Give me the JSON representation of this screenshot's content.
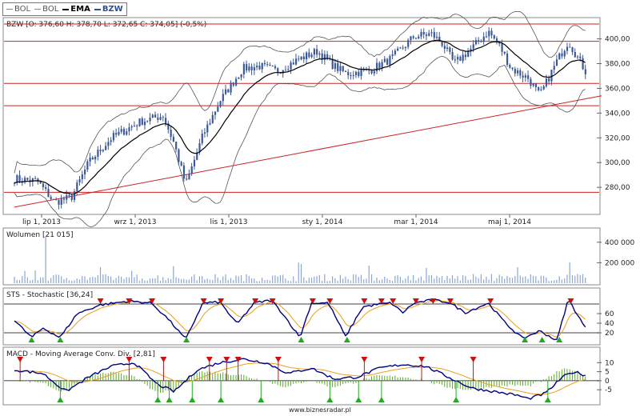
{
  "legend": [
    {
      "label": "BOL",
      "style": "thin"
    },
    {
      "label": "BOL",
      "style": "thin"
    },
    {
      "label": "EMA",
      "style": "bold"
    },
    {
      "label": "BZW",
      "style": "blue"
    }
  ],
  "footer": "www.biznesradar.pl",
  "colors": {
    "candle": "#3b5998",
    "support": "#cc2222",
    "volume": "#8aa6d8",
    "stoch_main": "#000080",
    "stoch_signal": "#e8a020",
    "macd_hist": "#5aaa2a",
    "marker_up": "#22aa22",
    "marker_down": "#cc1111"
  },
  "chart_data": [
    {
      "type": "candlestick",
      "title": "BZW [O: 376,60  H: 378,70  L: 372,65  C: 374,05] (-0,5%)",
      "x_tick_labels": [
        "lip 1, 2013",
        "wrz 1, 2013",
        "lis 1, 2013",
        "sty 1, 2014",
        "mar 1, 2014",
        "maj 1, 2014"
      ],
      "y_tick_labels": [
        "280,00",
        "300,00",
        "320,00",
        "340,00",
        "360,00",
        "380,00",
        "400,00"
      ],
      "ylim": [
        262,
        412
      ],
      "horizontal_levels": [
        412,
        398,
        364,
        346,
        276
      ],
      "trendline": {
        "from": [
          0,
          264
        ],
        "to": [
          1,
          354
        ]
      },
      "close_anchors": [
        [
          0,
          287
        ],
        [
          0.04,
          285
        ],
        [
          0.07,
          268
        ],
        [
          0.1,
          272
        ],
        [
          0.13,
          300
        ],
        [
          0.17,
          320
        ],
        [
          0.22,
          333
        ],
        [
          0.26,
          338
        ],
        [
          0.28,
          315
        ],
        [
          0.3,
          282
        ],
        [
          0.33,
          322
        ],
        [
          0.36,
          350
        ],
        [
          0.4,
          376
        ],
        [
          0.43,
          378
        ],
        [
          0.46,
          374
        ],
        [
          0.5,
          384
        ],
        [
          0.53,
          390
        ],
        [
          0.56,
          378
        ],
        [
          0.58,
          372
        ],
        [
          0.62,
          374
        ],
        [
          0.66,
          384
        ],
        [
          0.7,
          402
        ],
        [
          0.73,
          404
        ],
        [
          0.75,
          396
        ],
        [
          0.77,
          380
        ],
        [
          0.8,
          392
        ],
        [
          0.83,
          406
        ],
        [
          0.85,
          394
        ],
        [
          0.87,
          376
        ],
        [
          0.9,
          368
        ],
        [
          0.92,
          354
        ],
        [
          0.95,
          382
        ],
        [
          0.97,
          398
        ],
        [
          1,
          374
        ]
      ]
    },
    {
      "type": "bar",
      "title": "Wolumen [21 015]",
      "y_tick_labels": [
        "200 000",
        "400 000"
      ],
      "ylim": [
        0,
        500000
      ]
    },
    {
      "type": "line",
      "title": "STS - Stochastic [36,24]",
      "y_tick_labels": [
        "20",
        "40",
        "60"
      ],
      "ylim": [
        0,
        100
      ],
      "levels": [
        80,
        20
      ],
      "main_anchors": [
        [
          0,
          46
        ],
        [
          0.03,
          10
        ],
        [
          0.05,
          30
        ],
        [
          0.08,
          10
        ],
        [
          0.11,
          60
        ],
        [
          0.15,
          78
        ],
        [
          0.2,
          86
        ],
        [
          0.24,
          82
        ],
        [
          0.27,
          48
        ],
        [
          0.3,
          6
        ],
        [
          0.33,
          82
        ],
        [
          0.36,
          84
        ],
        [
          0.39,
          38
        ],
        [
          0.42,
          82
        ],
        [
          0.45,
          88
        ],
        [
          0.47,
          60
        ],
        [
          0.5,
          10
        ],
        [
          0.52,
          82
        ],
        [
          0.55,
          82
        ],
        [
          0.58,
          12
        ],
        [
          0.61,
          74
        ],
        [
          0.64,
          80
        ],
        [
          0.66,
          82
        ],
        [
          0.68,
          62
        ],
        [
          0.7,
          82
        ],
        [
          0.73,
          88
        ],
        [
          0.76,
          84
        ],
        [
          0.79,
          62
        ],
        [
          0.83,
          82
        ],
        [
          0.86,
          40
        ],
        [
          0.89,
          8
        ],
        [
          0.92,
          24
        ],
        [
          0.95,
          4
        ],
        [
          0.97,
          90
        ],
        [
          1,
          30
        ]
      ]
    },
    {
      "type": "line",
      "title": "MACD - Moving Average Conv. Div. [2,81]",
      "y_tick_labels": [
        "-5",
        "0",
        "5",
        "10"
      ],
      "ylim": [
        -12,
        15
      ],
      "macd_anchors": [
        [
          0,
          6
        ],
        [
          0.05,
          4
        ],
        [
          0.09,
          -6
        ],
        [
          0.13,
          2
        ],
        [
          0.17,
          8
        ],
        [
          0.21,
          10
        ],
        [
          0.25,
          -2
        ],
        [
          0.28,
          -6
        ],
        [
          0.32,
          6
        ],
        [
          0.36,
          10
        ],
        [
          0.4,
          12
        ],
        [
          0.44,
          10
        ],
        [
          0.48,
          4
        ],
        [
          0.52,
          7
        ],
        [
          0.56,
          1
        ],
        [
          0.6,
          2
        ],
        [
          0.64,
          7
        ],
        [
          0.68,
          9
        ],
        [
          0.72,
          8
        ],
        [
          0.76,
          2
        ],
        [
          0.8,
          -4
        ],
        [
          0.84,
          -6
        ],
        [
          0.88,
          -8
        ],
        [
          0.9,
          -10
        ],
        [
          0.93,
          -7
        ],
        [
          0.96,
          2
        ],
        [
          0.98,
          5
        ],
        [
          1,
          3
        ]
      ]
    }
  ]
}
